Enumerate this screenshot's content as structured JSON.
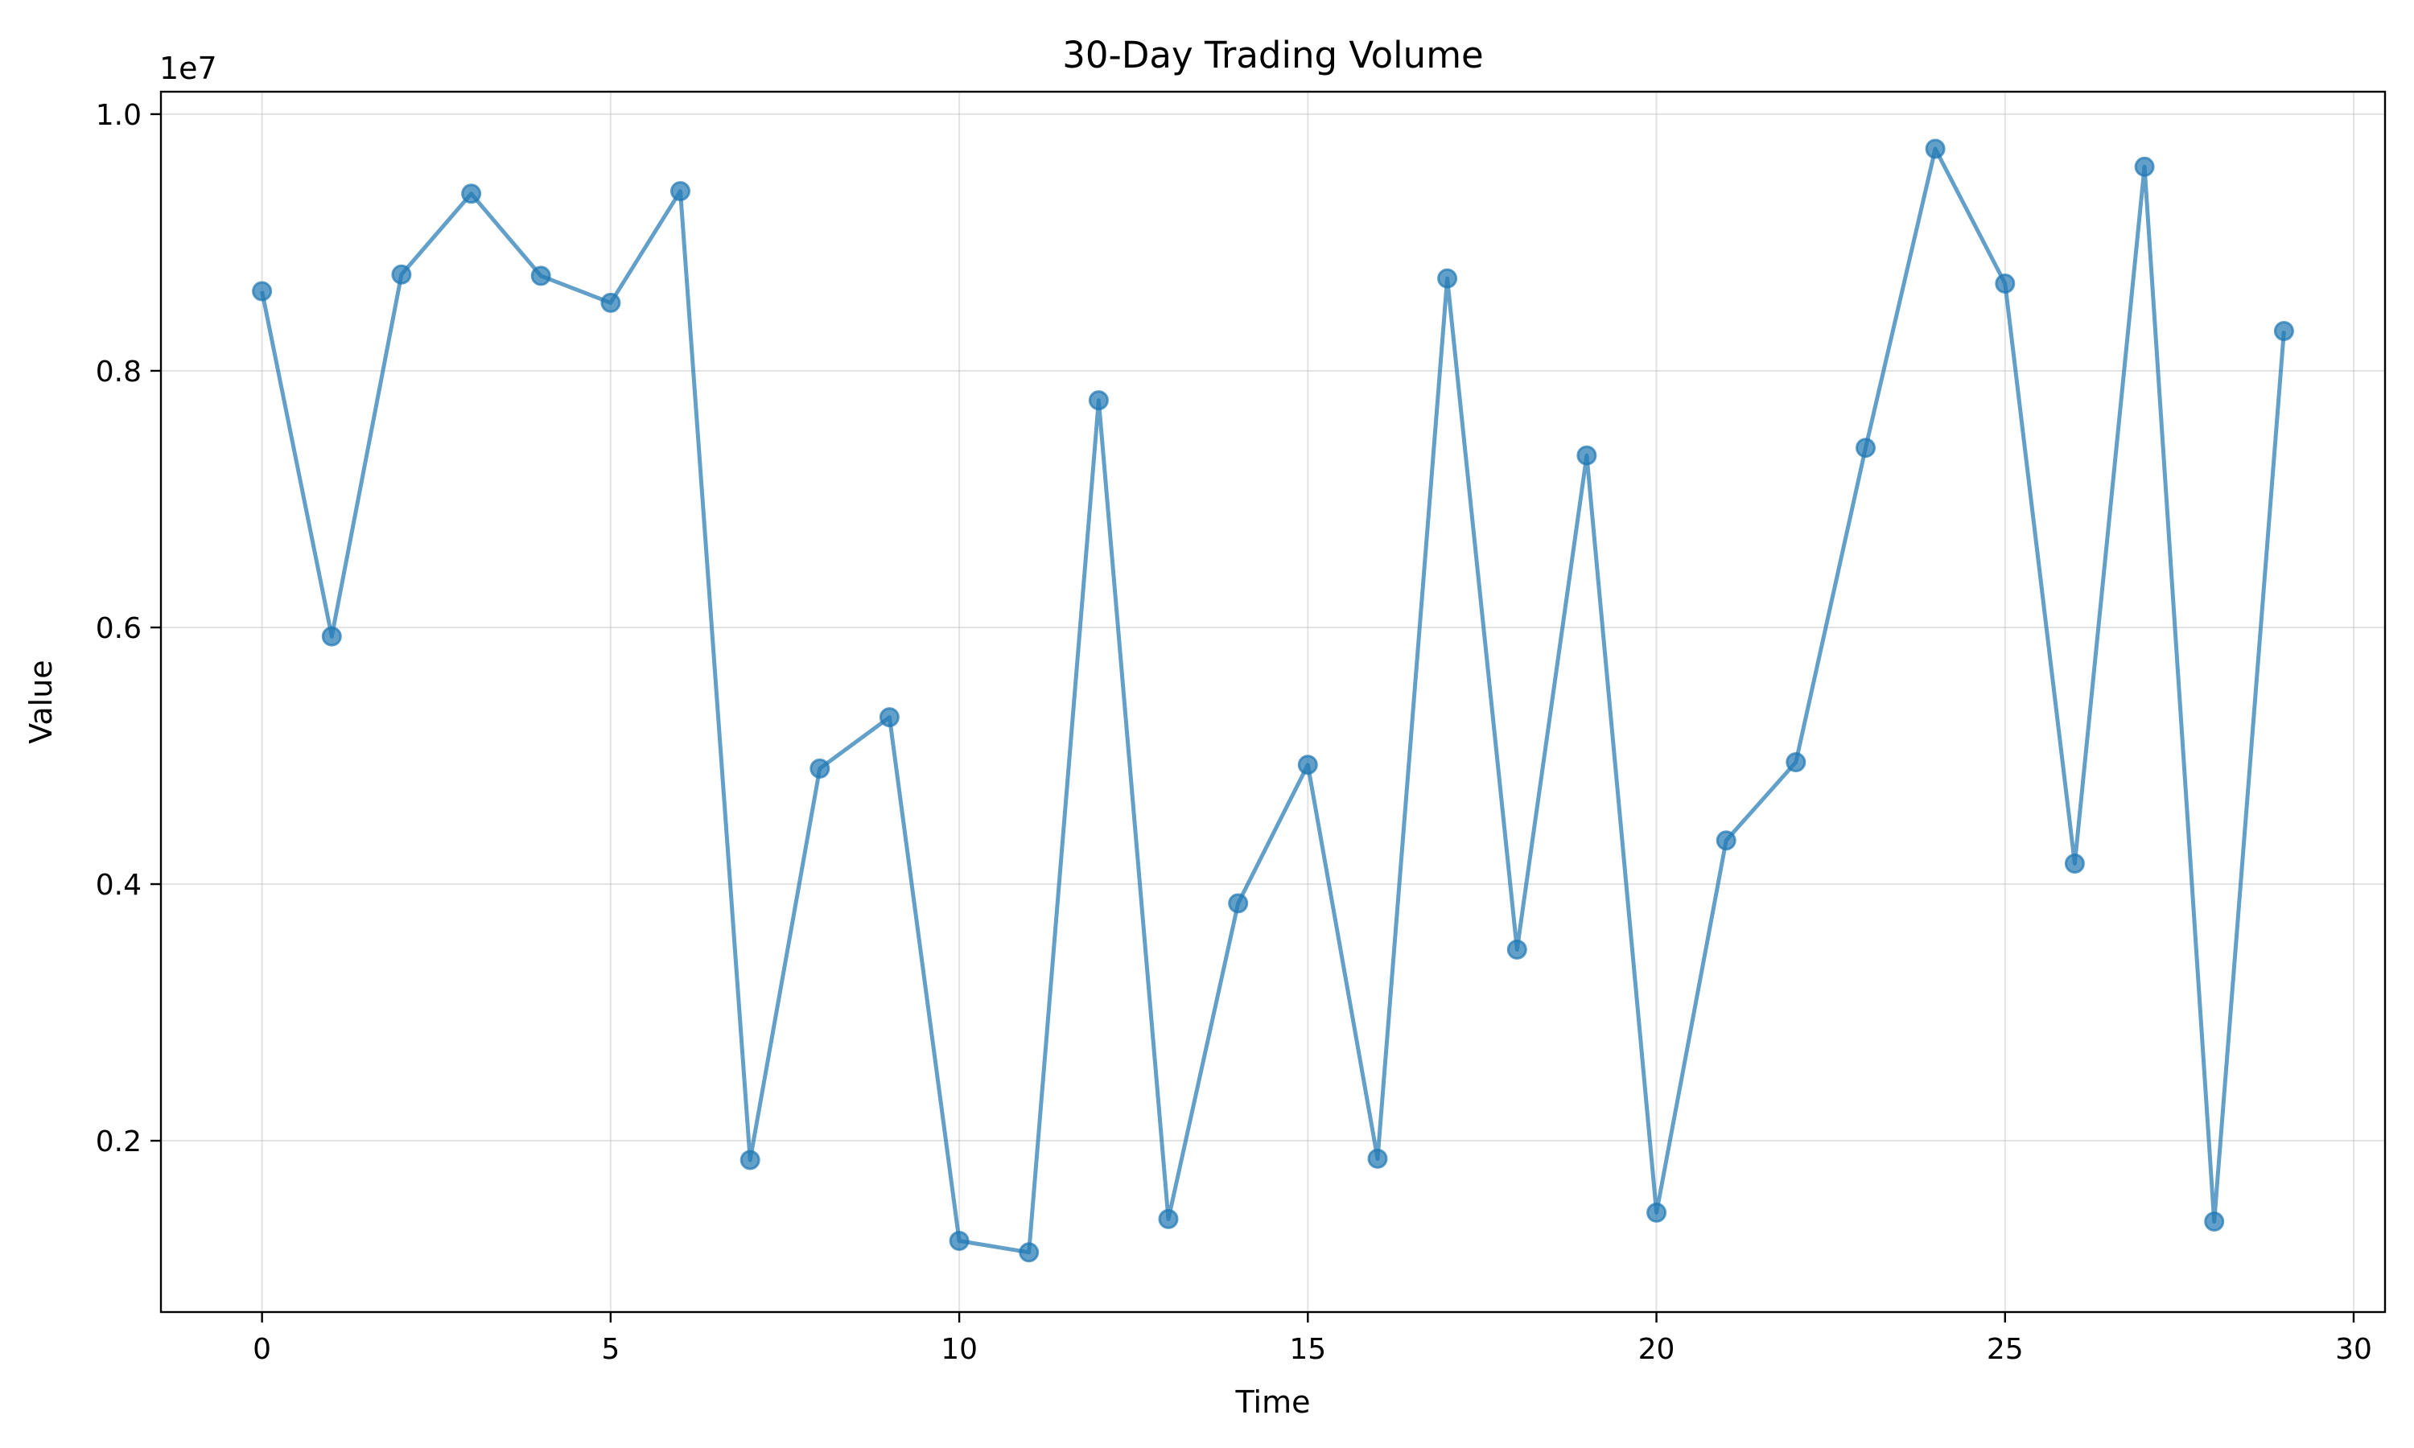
{
  "chart_data": {
    "type": "line",
    "title": "30-Day Trading Volume",
    "xlabel": "Time",
    "ylabel": "Value",
    "y_offset_label": "1e7",
    "xlim": [
      -1.45,
      30.45
    ],
    "ylim": [
      0.0665,
      1.0175
    ],
    "y_scale_factor": 10000000,
    "xticks": [
      0,
      5,
      10,
      15,
      20,
      25,
      30
    ],
    "xtick_labels": [
      "0",
      "5",
      "10",
      "15",
      "20",
      "25",
      "30"
    ],
    "yticks": [
      0.2,
      0.4,
      0.6,
      0.8,
      1.0
    ],
    "ytick_labels": [
      "0.2",
      "0.4",
      "0.6",
      "0.8",
      "1.0"
    ],
    "grid": true,
    "legend": "none",
    "series": [
      {
        "color": "#1f77b4",
        "alpha": 0.7,
        "marker": "circle",
        "x": [
          0,
          1,
          2,
          3,
          4,
          5,
          6,
          7,
          8,
          9,
          10,
          11,
          12,
          13,
          14,
          15,
          16,
          17,
          18,
          19,
          20,
          21,
          22,
          23,
          24,
          25,
          26,
          27,
          28,
          29
        ],
        "values": [
          8620000,
          5930000,
          8750000,
          9380000,
          8740000,
          8530000,
          9400000,
          1850000,
          4900000,
          5300000,
          1220000,
          1130000,
          7770000,
          1390000,
          3850000,
          4930000,
          1860000,
          8720000,
          3490000,
          7340000,
          1440000,
          4340000,
          4950000,
          7400000,
          9730000,
          8680000,
          4160000,
          9590000,
          1370000,
          8310000
        ]
      }
    ]
  }
}
